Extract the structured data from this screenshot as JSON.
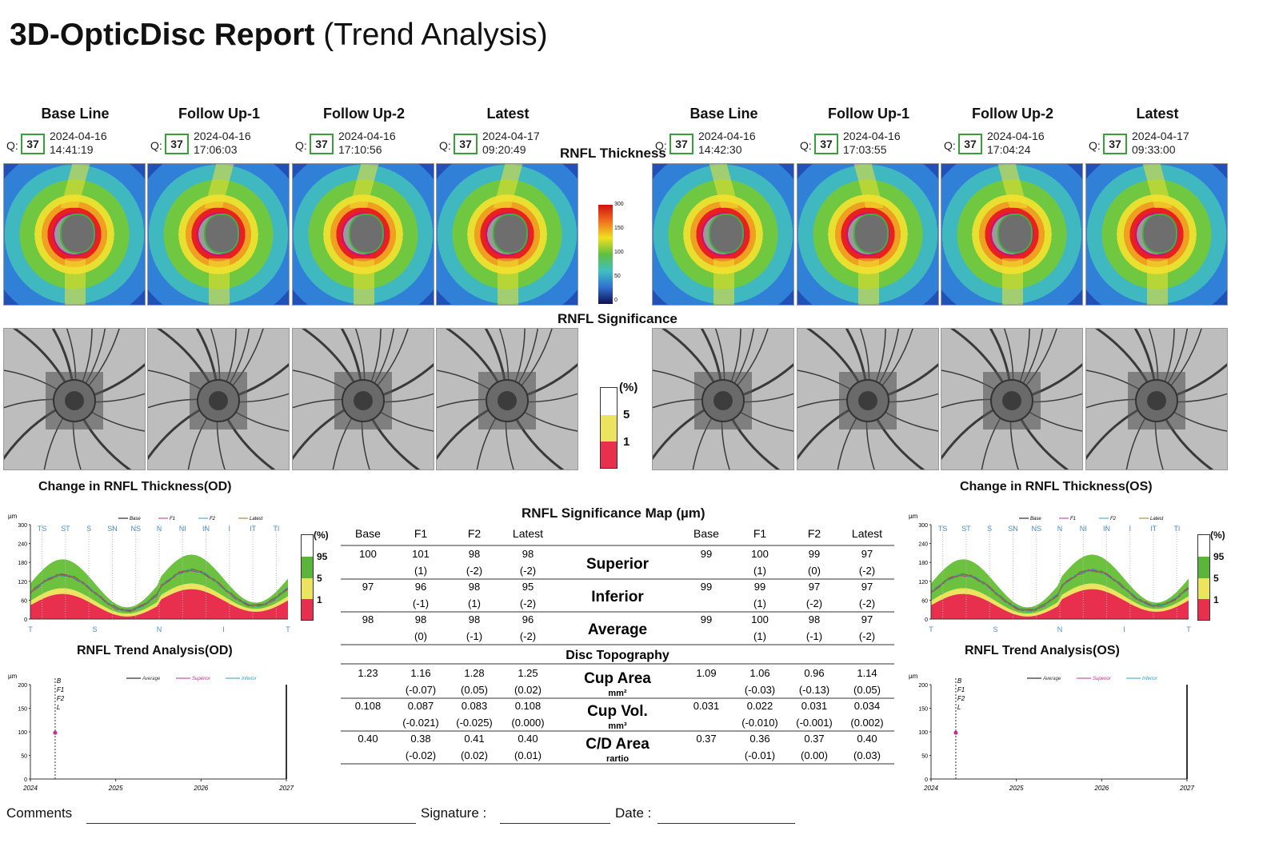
{
  "report": {
    "title_bold": "3D-OpticDisc Report",
    "title_rest": "(Trend Analysis)"
  },
  "columns": [
    "Base Line",
    "Follow Up-1",
    "Follow Up-2",
    "Latest"
  ],
  "od_scans": [
    {
      "q": "37",
      "date": "2024-04-16",
      "time": "14:41:19"
    },
    {
      "q": "37",
      "date": "2024-04-16",
      "time": "17:06:03"
    },
    {
      "q": "37",
      "date": "2024-04-16",
      "time": "17:10:56"
    },
    {
      "q": "37",
      "date": "2024-04-17",
      "time": "09:20:49"
    }
  ],
  "os_scans": [
    {
      "q": "37",
      "date": "2024-04-16",
      "time": "14:42:30"
    },
    {
      "q": "37",
      "date": "2024-04-16",
      "time": "17:03:55"
    },
    {
      "q": "37",
      "date": "2024-04-16",
      "time": "17:04:24"
    },
    {
      "q": "37",
      "date": "2024-04-17",
      "time": "09:33:00"
    }
  ],
  "q_prefix": "Q:",
  "sections": {
    "rnfl_thickness": "RNFL Thickness",
    "rnfl_significance": "RNFL Significance",
    "change_od": "Change in RNFL Thickness(OD)",
    "change_os": "Change in RNFL Thickness(OS)",
    "trend_od": "RNFL Trend Analysis(OD)",
    "trend_os": "RNFL Trend Analysis(OS)",
    "sig_map": "RNFL Significance Map (µm)",
    "disc_topo": "Disc Topography"
  },
  "color_scale": {
    "ticks": [
      "300",
      "150",
      "100",
      "50",
      "0"
    ]
  },
  "significance_legend": {
    "unit": "(%)",
    "levels": [
      "5",
      "1"
    ],
    "colors": [
      "#ffffff",
      "#e8e35a",
      "#e8304e"
    ]
  },
  "change_legend": {
    "unit": "(%)",
    "levels": [
      "95",
      "5",
      "1"
    ]
  },
  "change_chart": {
    "unit": "µm",
    "y_ticks": [
      "300",
      "240",
      "180",
      "120",
      "60",
      "0"
    ],
    "sectors": [
      "TS",
      "ST",
      "S",
      "SN",
      "NS",
      "N",
      "NI",
      "IN",
      "I",
      "IT",
      "TI"
    ],
    "x_labels": [
      "T",
      "S",
      "N",
      "I",
      "T"
    ],
    "legend": [
      "Base",
      "F1",
      "F2",
      "Latest"
    ]
  },
  "trend_chart": {
    "unit": "µm",
    "y_ticks": [
      "200",
      "150",
      "100",
      "50",
      "0"
    ],
    "x_ticks": [
      "2024",
      "2025",
      "2026",
      "2027"
    ],
    "legend": [
      "Average",
      "Superior",
      "Inferior"
    ],
    "visit_labels": [
      "B",
      "F1",
      "F2",
      "L"
    ]
  },
  "table": {
    "headers": [
      "Base",
      "F1",
      "F2",
      "Latest"
    ],
    "rows": [
      {
        "label": "Superior",
        "unit": "",
        "od": [
          [
            "100",
            ""
          ],
          [
            "101",
            "(1)"
          ],
          [
            "98",
            "(-2)"
          ],
          [
            "98",
            "(-2)"
          ]
        ],
        "os": [
          [
            "99",
            ""
          ],
          [
            "100",
            "(1)"
          ],
          [
            "99",
            "(0)"
          ],
          [
            "97",
            "(-2)"
          ]
        ]
      },
      {
        "label": "Inferior",
        "unit": "",
        "od": [
          [
            "97",
            ""
          ],
          [
            "96",
            "(-1)"
          ],
          [
            "98",
            "(1)"
          ],
          [
            "95",
            "(-2)"
          ]
        ],
        "os": [
          [
            "99",
            ""
          ],
          [
            "99",
            "(1)"
          ],
          [
            "97",
            "(-2)"
          ],
          [
            "97",
            "(-2)"
          ]
        ]
      },
      {
        "label": "Average",
        "unit": "",
        "od": [
          [
            "98",
            ""
          ],
          [
            "98",
            "(0)"
          ],
          [
            "98",
            "(-1)"
          ],
          [
            "96",
            "(-2)"
          ]
        ],
        "os": [
          [
            "99",
            ""
          ],
          [
            "100",
            "(1)"
          ],
          [
            "98",
            "(-1)"
          ],
          [
            "97",
            "(-2)"
          ]
        ]
      }
    ],
    "topo_rows": [
      {
        "label": "Cup Area",
        "unit": "mm²",
        "od": [
          [
            "1.23",
            ""
          ],
          [
            "1.16",
            "(-0.07)"
          ],
          [
            "1.28",
            "(0.05)"
          ],
          [
            "1.25",
            "(0.02)"
          ]
        ],
        "os": [
          [
            "1.09",
            ""
          ],
          [
            "1.06",
            "(-0.03)"
          ],
          [
            "0.96",
            "(-0.13)"
          ],
          [
            "1.14",
            "(0.05)"
          ]
        ]
      },
      {
        "label": "Cup Vol.",
        "unit": "mm³",
        "od": [
          [
            "0.108",
            ""
          ],
          [
            "0.087",
            "(-0.021)"
          ],
          [
            "0.083",
            "(-0.025)"
          ],
          [
            "0.108",
            "(0.000)"
          ]
        ],
        "os": [
          [
            "0.031",
            ""
          ],
          [
            "0.022",
            "(-0.010)"
          ],
          [
            "0.031",
            "(-0.001)"
          ],
          [
            "0.034",
            "(0.002)"
          ]
        ]
      },
      {
        "label": "C/D Area",
        "unit": "rartio",
        "od": [
          [
            "0.40",
            ""
          ],
          [
            "0.38",
            "(-0.02)"
          ],
          [
            "0.41",
            "(0.02)"
          ],
          [
            "0.40",
            "(0.01)"
          ]
        ],
        "os": [
          [
            "0.37",
            ""
          ],
          [
            "0.36",
            "(-0.01)"
          ],
          [
            "0.37",
            "(0.00)"
          ],
          [
            "0.40",
            "(0.03)"
          ]
        ]
      }
    ]
  },
  "footer": {
    "comments": "Comments",
    "signature": "Signature :",
    "date": "Date :"
  }
}
